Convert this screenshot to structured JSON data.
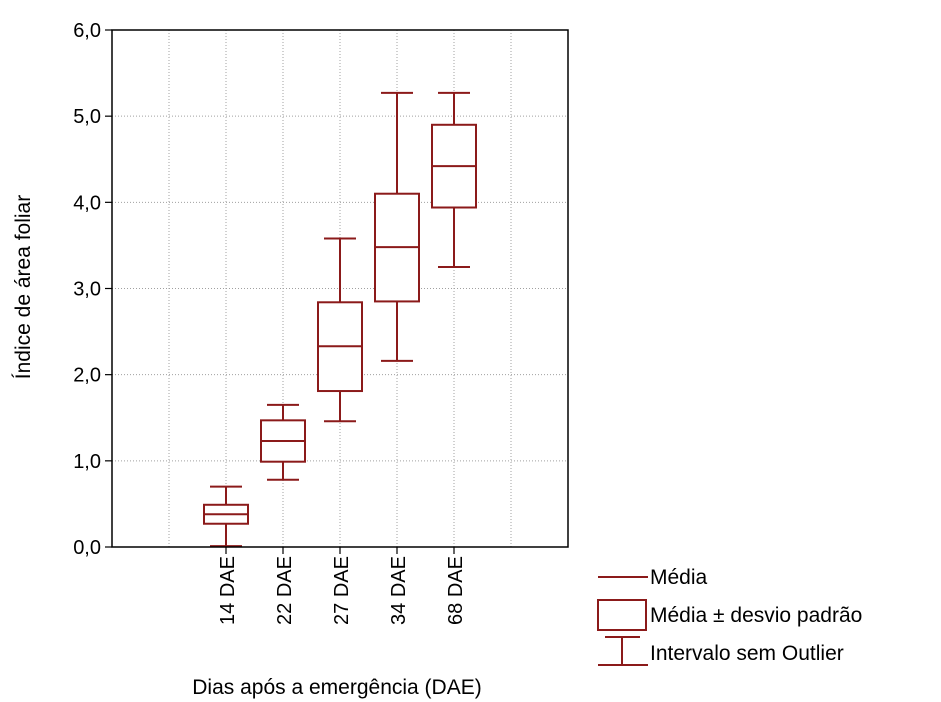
{
  "chart_data": {
    "type": "box",
    "xlabel": "Dias após a emergência (DAE)",
    "ylabel": "Índice de área foliar",
    "ylim": [
      0,
      6
    ],
    "yticks": [
      "0,0",
      "1,0",
      "2,0",
      "3,0",
      "4,0",
      "5,0",
      "6,0"
    ],
    "categories": [
      "14 DAE",
      "22 DAE",
      "27 DAE",
      "34 DAE",
      "68 DAE"
    ],
    "series": [
      {
        "category": "14 DAE",
        "mean": 0.38,
        "sd_low": 0.27,
        "sd_high": 0.49,
        "min": 0.01,
        "max": 0.7
      },
      {
        "category": "22 DAE",
        "mean": 1.23,
        "sd_low": 0.99,
        "sd_high": 1.47,
        "min": 0.78,
        "max": 1.65
      },
      {
        "category": "27 DAE",
        "mean": 2.33,
        "sd_low": 1.81,
        "sd_high": 2.84,
        "min": 1.46,
        "max": 3.58
      },
      {
        "category": "34 DAE",
        "mean": 3.48,
        "sd_low": 2.85,
        "sd_high": 4.1,
        "min": 2.16,
        "max": 5.27
      },
      {
        "category": "68 DAE",
        "mean": 4.42,
        "sd_low": 3.94,
        "sd_high": 4.9,
        "min": 3.25,
        "max": 5.27
      }
    ],
    "grid": true,
    "legend_position": "bottom-right",
    "legend": [
      "Média",
      "Média ± desvio padrão",
      "Intervalo sem Outlier"
    ],
    "color": "#8b1a1a"
  }
}
